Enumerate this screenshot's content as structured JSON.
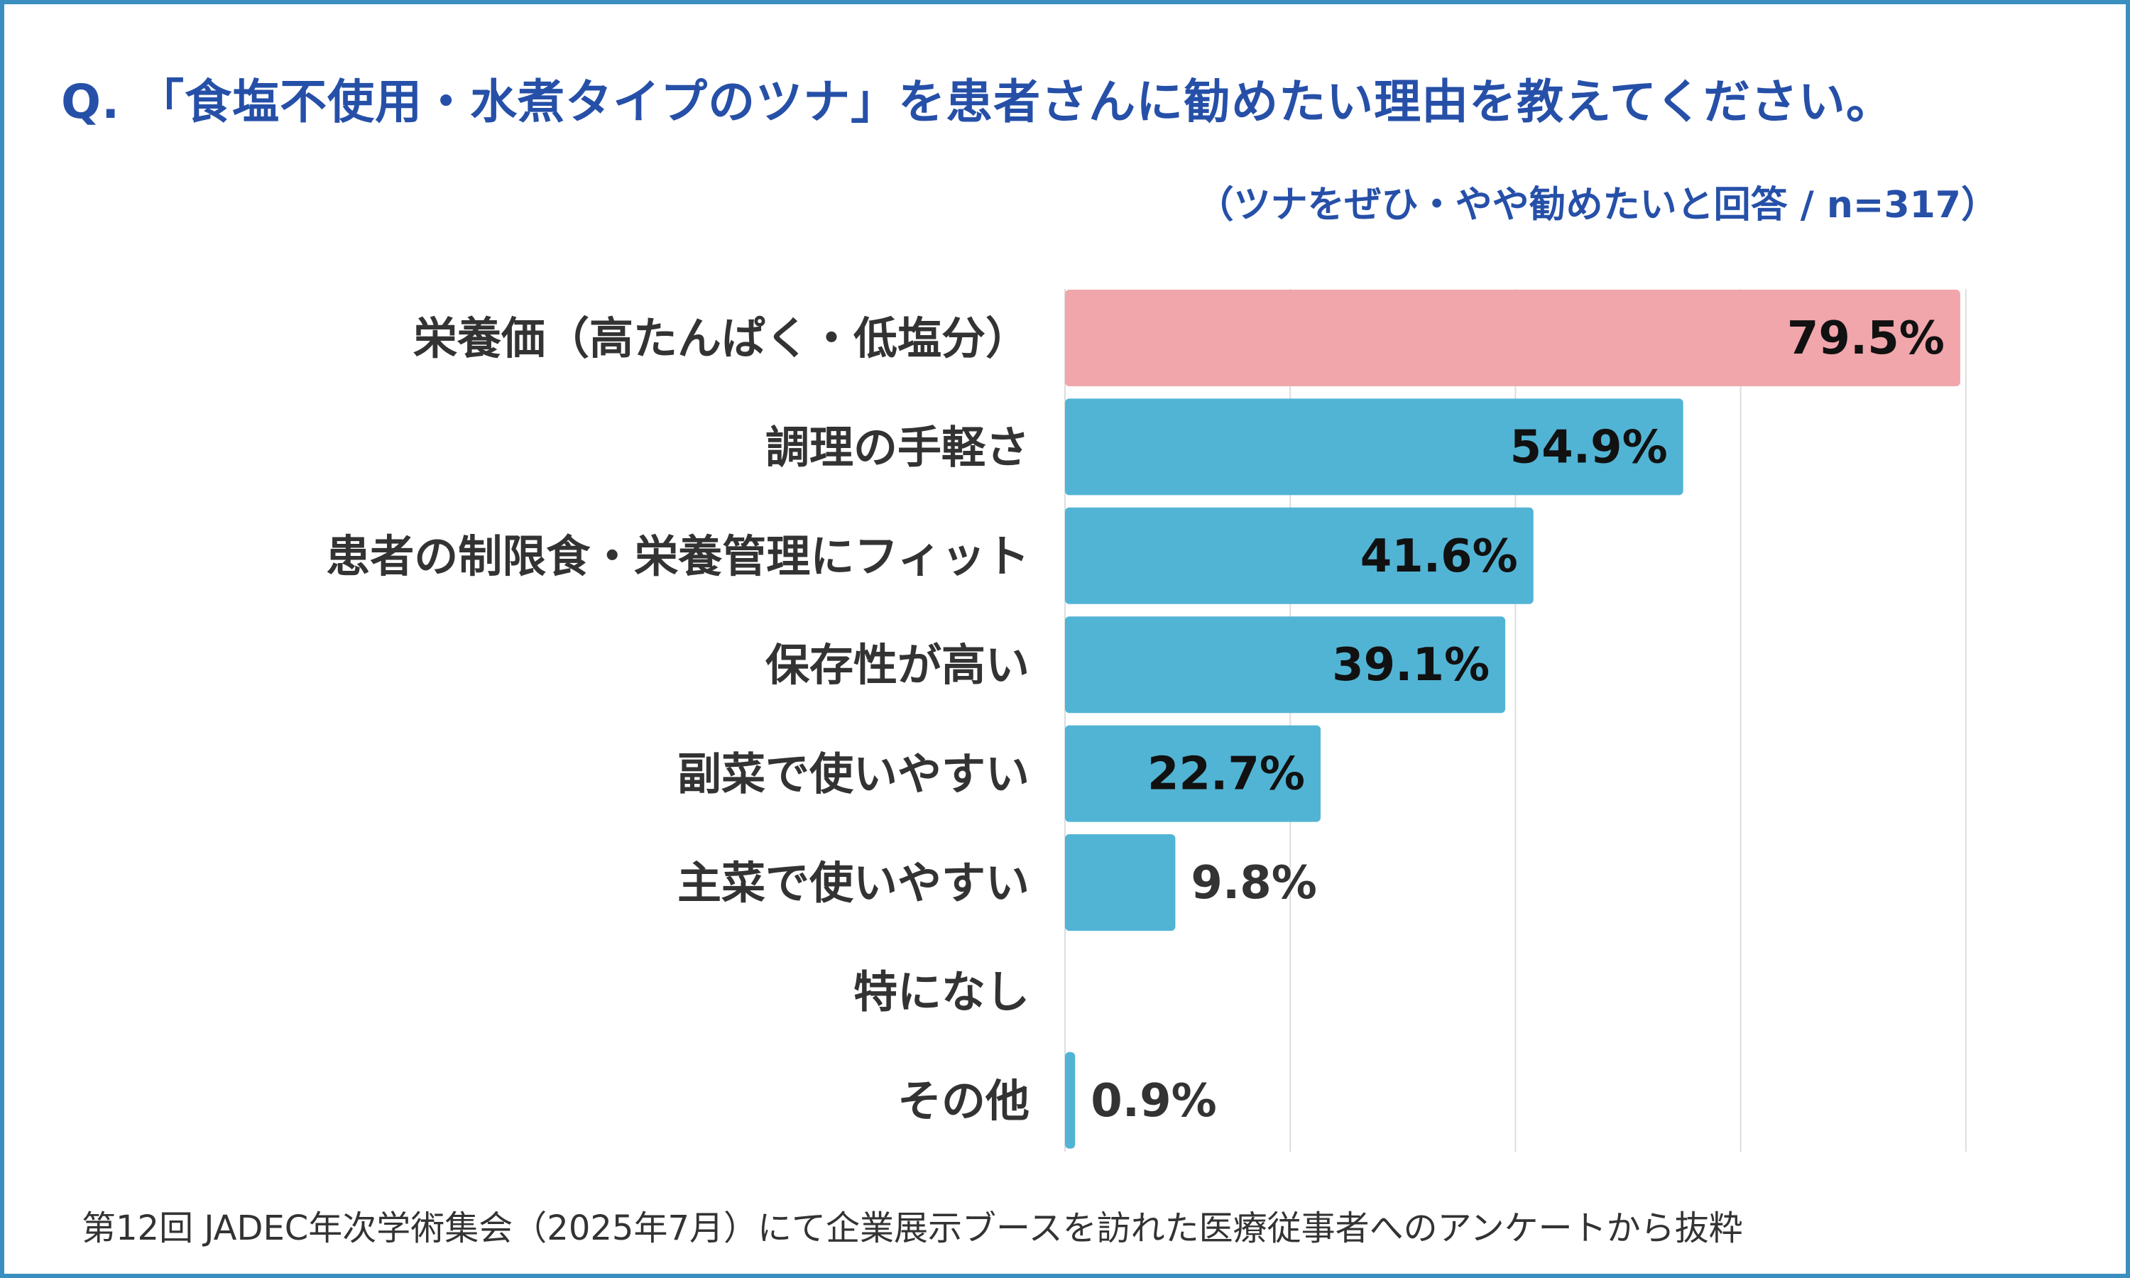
{
  "title": "Q. 「食塩不使用・水煮タイプのツナ」を患者さんに勧めたい理由を教えてください。",
  "subtitle": "（ツナをぜひ・やや勧めたいと回答 / n=317）",
  "footer": "第12回 JADEC年次学術集会（2025年7月）にて企業展示ブースを訪れた医療従事者へのアンケートから抜粋",
  "colors": {
    "highlight": "#f0a6aa",
    "bar": "#52b4d4",
    "grid": "#dddddd",
    "border": "#3a8fc0",
    "title": "#2650a8"
  },
  "chart_data": {
    "type": "bar",
    "orientation": "horizontal",
    "title": "Q. 「食塩不使用・水煮タイプのツナ」を患者さんに勧めたい理由を教えてください。",
    "subtitle": "（ツナをぜひ・やや勧めたいと回答 / n=317）",
    "categories": [
      "栄養価（高たんぱく・低塩分）",
      "調理の手軽さ",
      "患者の制限食・栄養管理にフィット",
      "保存性が高い",
      "副菜で使いやすい",
      "主菜で使いやすい",
      "特になし",
      "その他"
    ],
    "values": [
      79.5,
      54.9,
      41.6,
      39.1,
      22.7,
      9.8,
      0,
      0.9
    ],
    "labels": [
      "79.5%",
      "54.9%",
      "41.6%",
      "39.1%",
      "22.7%",
      "9.8%",
      "",
      "0.9%"
    ],
    "unit": "%",
    "xlim": [
      0,
      100
    ],
    "gridlines": [
      20,
      40,
      60,
      80
    ],
    "grid": true,
    "highlight_index": 0
  }
}
